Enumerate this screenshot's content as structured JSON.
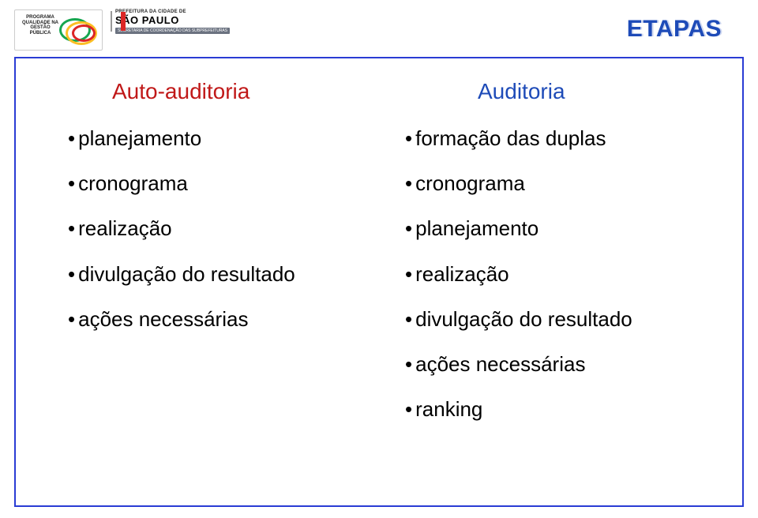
{
  "title": "ETAPAS",
  "logos": {
    "qualidade": {
      "line1": "PROGRAMA",
      "line2": "QUALIDADE NA GESTÃO",
      "line3": "PÚBLICA",
      "ring_colors": [
        "#16a650",
        "#fbbf24",
        "#dc2626"
      ]
    },
    "sao_paulo": {
      "small_line": "PREFEITURA DA CIDADE DE",
      "big_line": "SÃO PAULO",
      "bar_line": "SECRETARIA DE COORDENAÇÃO DAS SUBPREFEITURAS",
      "flag_red": "#dc2626"
    }
  },
  "columns": {
    "left": {
      "header": "Auto-auditoria",
      "header_color": "#c01818",
      "items": [
        "planejamento",
        "cronograma",
        "realização",
        "divulgação do resultado",
        "ações necessárias"
      ]
    },
    "right": {
      "header": "Auditoria",
      "header_color": "#1e4bb8",
      "items": [
        "formação das duplas",
        "cronograma",
        "planejamento",
        "realização",
        "divulgação do resultado",
        "ações necessárias",
        "ranking"
      ]
    }
  },
  "frame_border_color": "#2a3cd4",
  "title_color": "#1e4bb8",
  "background_color": "#ffffff",
  "body_text_color": "#000000",
  "font_sizes": {
    "title": 30,
    "column_header": 28,
    "item": 26
  }
}
